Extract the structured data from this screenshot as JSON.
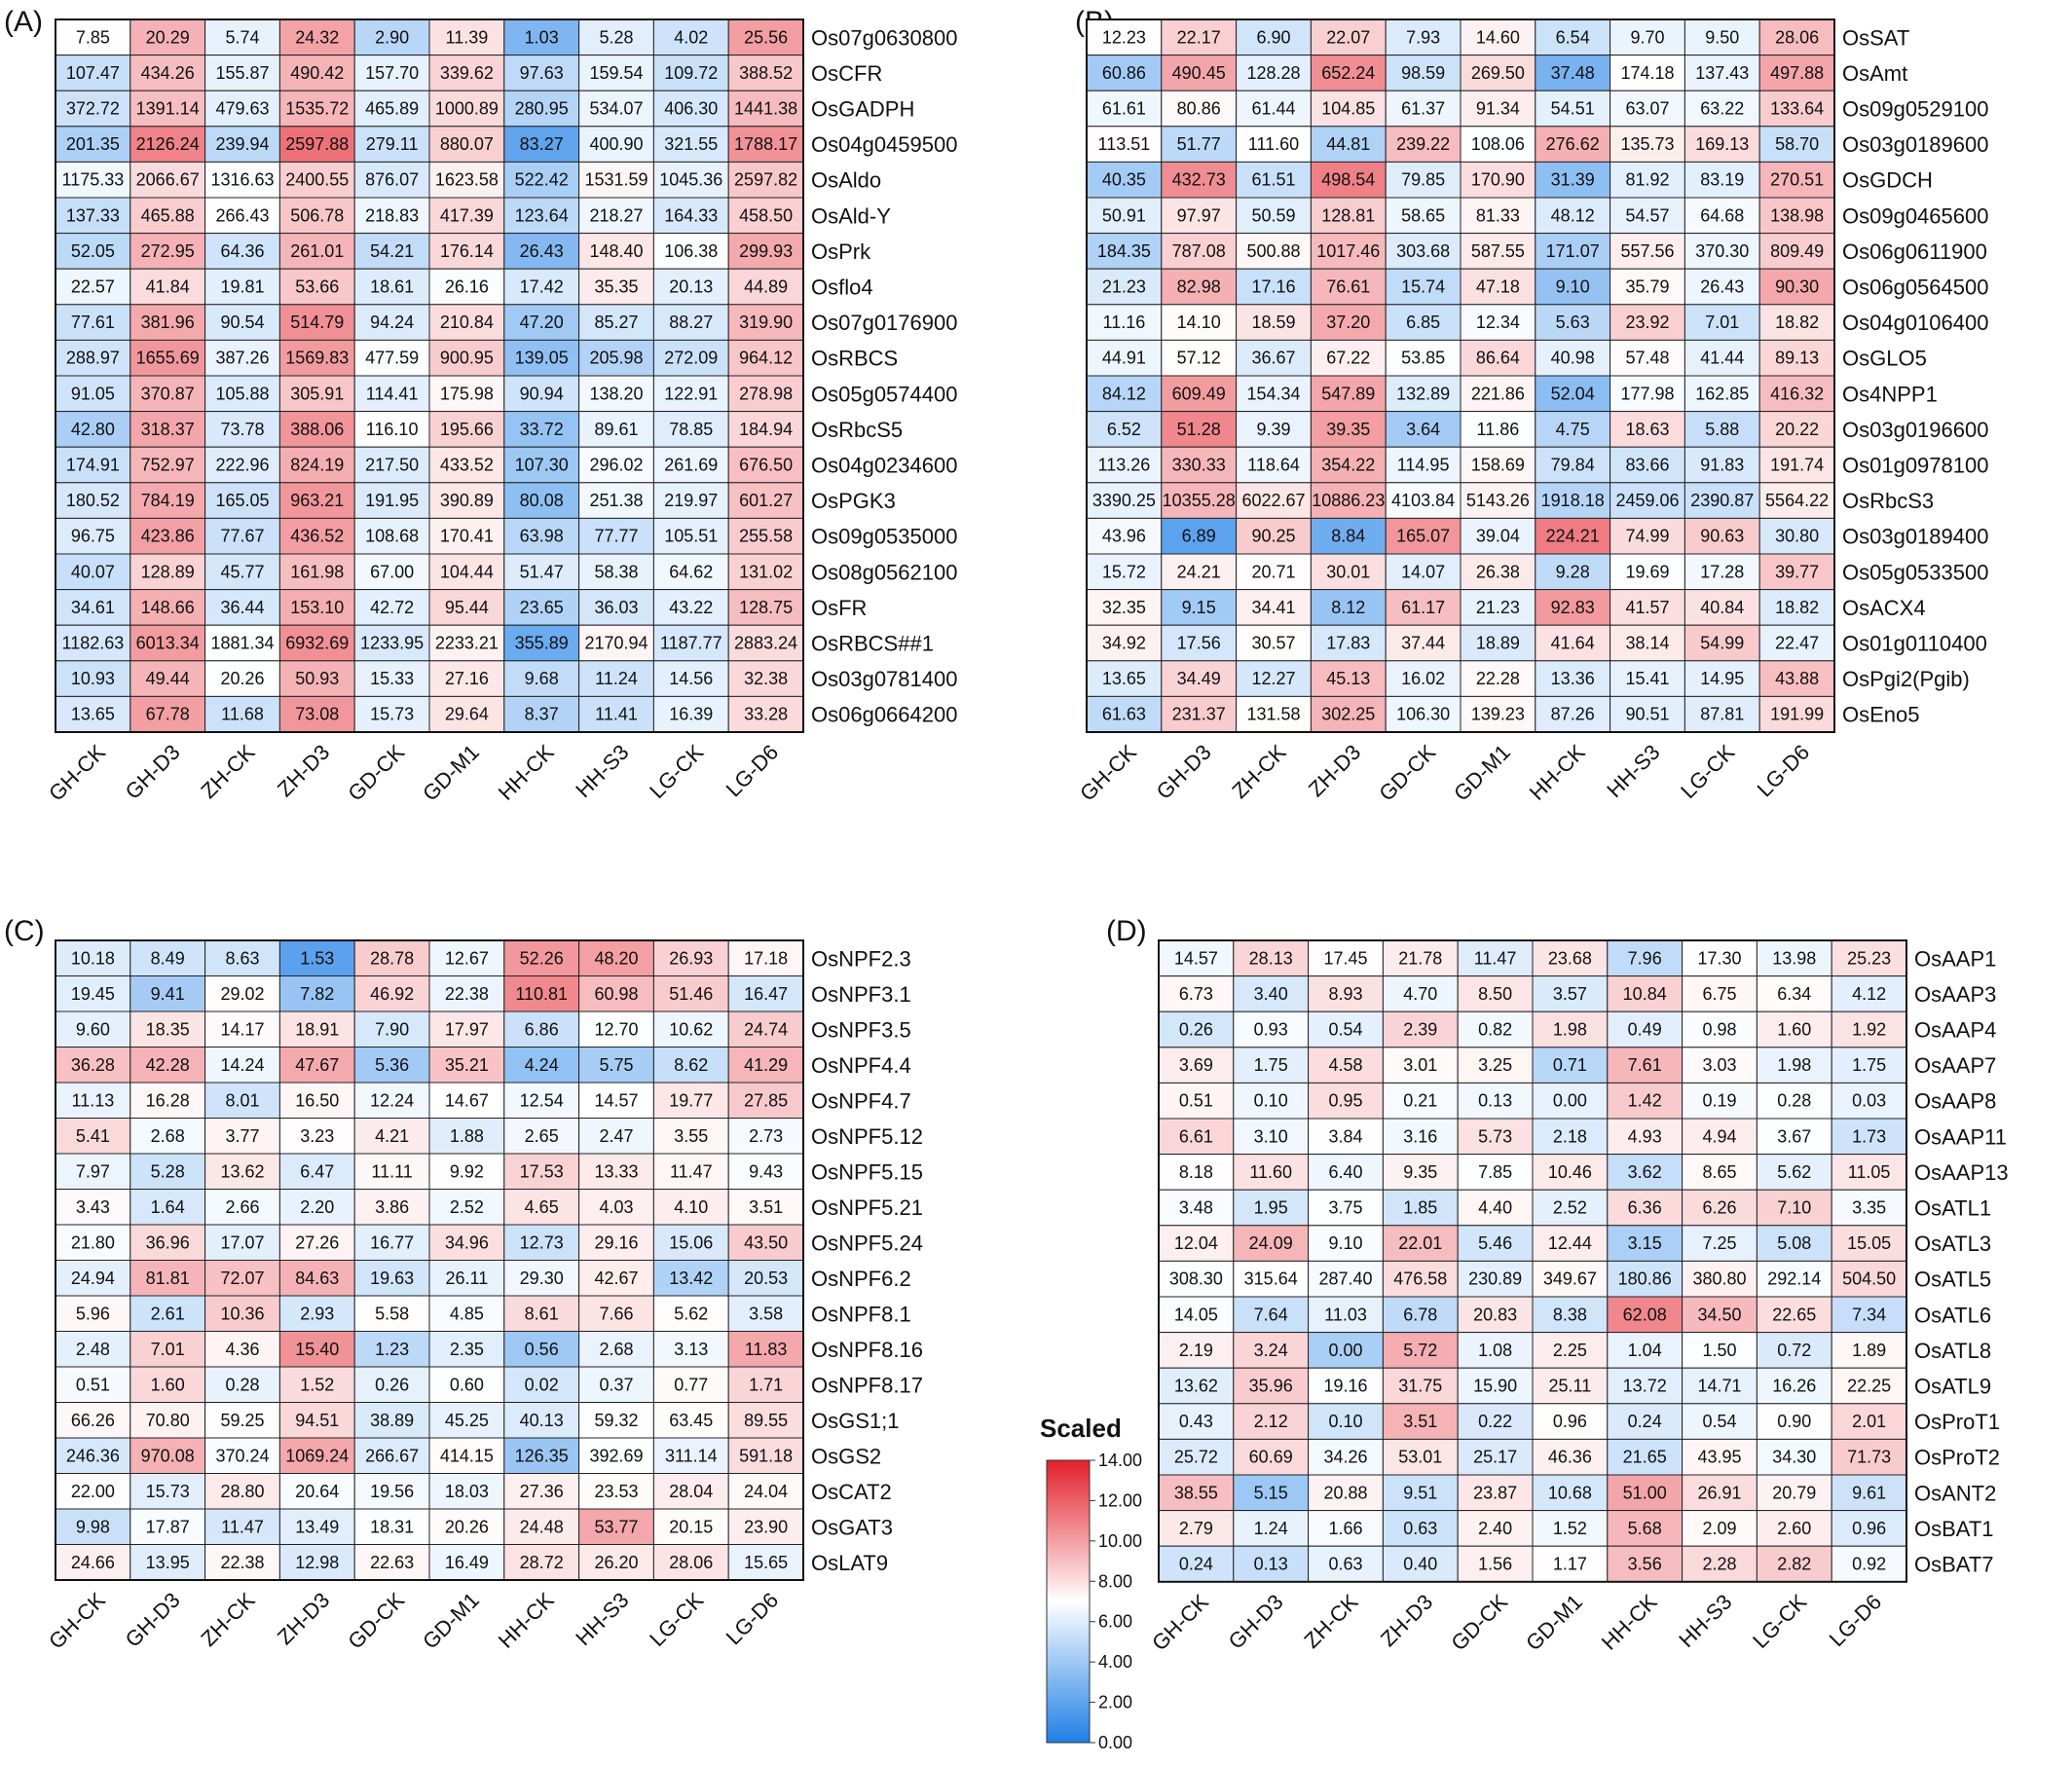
{
  "legend": {
    "title": "Scaled",
    "ticks": [
      "14.00",
      "12.00",
      "10.00",
      "8.00",
      "6.00",
      "4.00",
      "2.00",
      "0.00"
    ],
    "colors": [
      "#1f7fe6",
      "#ffffff",
      "#e2202a"
    ]
  },
  "chart_data": [
    {
      "type": "heatmap",
      "panel_label": "(A)",
      "columns": [
        "GH-CK",
        "GH-D3",
        "ZH-CK",
        "ZH-D3",
        "GD-CK",
        "GD-M1",
        "HH-CK",
        "HH-S3",
        "LG-CK",
        "LG-D6"
      ],
      "rows": [
        "Os07g0630800",
        "OsCFR",
        "OsGADPH",
        "Os04g0459500",
        "OsAldo",
        "OsAld-Y",
        "OsPrk",
        "Osflo4",
        "Os07g0176900",
        "OsRBCS",
        "Os05g0574400",
        "OsRbcS5",
        "Os04g0234600",
        "OsPGK3",
        "Os09g0535000",
        "Os08g0562100",
        "OsFR",
        "OsRBCS##1",
        "Os03g0781400",
        "Os06g0664200"
      ],
      "values": [
        [
          "7.85",
          "20.29",
          "5.74",
          "24.32",
          "2.90",
          "11.39",
          "1.03",
          "5.28",
          "4.02",
          "25.56"
        ],
        [
          "107.47",
          "434.26",
          "155.87",
          "490.42",
          "157.70",
          "339.62",
          "97.63",
          "159.54",
          "109.72",
          "388.52"
        ],
        [
          "372.72",
          "1391.14",
          "479.63",
          "1535.72",
          "465.89",
          "1000.89",
          "280.95",
          "534.07",
          "406.30",
          "1441.38"
        ],
        [
          "201.35",
          "2126.24",
          "239.94",
          "2597.88",
          "279.11",
          "880.07",
          "83.27",
          "400.90",
          "321.55",
          "1788.17"
        ],
        [
          "1175.33",
          "2066.67",
          "1316.63",
          "2400.55",
          "876.07",
          "1623.58",
          "522.42",
          "1531.59",
          "1045.36",
          "2597.82"
        ],
        [
          "137.33",
          "465.88",
          "266.43",
          "506.78",
          "218.83",
          "417.39",
          "123.64",
          "218.27",
          "164.33",
          "458.50"
        ],
        [
          "52.05",
          "272.95",
          "64.36",
          "261.01",
          "54.21",
          "176.14",
          "26.43",
          "148.40",
          "106.38",
          "299.93"
        ],
        [
          "22.57",
          "41.84",
          "19.81",
          "53.66",
          "18.61",
          "26.16",
          "17.42",
          "35.35",
          "20.13",
          "44.89"
        ],
        [
          "77.61",
          "381.96",
          "90.54",
          "514.79",
          "94.24",
          "210.84",
          "47.20",
          "85.27",
          "88.27",
          "319.90"
        ],
        [
          "288.97",
          "1655.69",
          "387.26",
          "1569.83",
          "477.59",
          "900.95",
          "139.05",
          "205.98",
          "272.09",
          "964.12"
        ],
        [
          "91.05",
          "370.87",
          "105.88",
          "305.91",
          "114.41",
          "175.98",
          "90.94",
          "138.20",
          "122.91",
          "278.98"
        ],
        [
          "42.80",
          "318.37",
          "73.78",
          "388.06",
          "116.10",
          "195.66",
          "33.72",
          "89.61",
          "78.85",
          "184.94"
        ],
        [
          "174.91",
          "752.97",
          "222.96",
          "824.19",
          "217.50",
          "433.52",
          "107.30",
          "296.02",
          "261.69",
          "676.50"
        ],
        [
          "180.52",
          "784.19",
          "165.05",
          "963.21",
          "191.95",
          "390.89",
          "80.08",
          "251.38",
          "219.97",
          "601.27"
        ],
        [
          "96.75",
          "423.86",
          "77.67",
          "436.52",
          "108.68",
          "170.41",
          "63.98",
          "77.77",
          "105.51",
          "255.58"
        ],
        [
          "40.07",
          "128.89",
          "45.77",
          "161.98",
          "67.00",
          "104.44",
          "51.47",
          "58.38",
          "64.62",
          "131.02"
        ],
        [
          "34.61",
          "148.66",
          "36.44",
          "153.10",
          "42.72",
          "95.44",
          "23.65",
          "36.03",
          "43.22",
          "128.75"
        ],
        [
          "1182.63",
          "6013.34",
          "1881.34",
          "6932.69",
          "1233.95",
          "2233.21",
          "355.89",
          "2170.94",
          "1187.77",
          "2883.24"
        ],
        [
          "10.93",
          "49.44",
          "20.26",
          "50.93",
          "15.33",
          "27.16",
          "9.68",
          "11.24",
          "14.56",
          "32.38"
        ],
        [
          "13.65",
          "67.78",
          "11.68",
          "73.08",
          "15.73",
          "29.64",
          "8.37",
          "11.41",
          "16.39",
          "33.28"
        ]
      ]
    },
    {
      "type": "heatmap",
      "panel_label": "(B)",
      "columns": [
        "GH-CK",
        "GH-D3",
        "ZH-CK",
        "ZH-D3",
        "GD-CK",
        "GD-M1",
        "HH-CK",
        "HH-S3",
        "LG-CK",
        "LG-D6"
      ],
      "rows": [
        "OsSAT",
        "OsAmt",
        "Os09g0529100",
        "Os03g0189600",
        "OsGDCH",
        "Os09g0465600",
        "Os06g0611900",
        "Os06g0564500",
        "Os04g0106400",
        "OsGLO5",
        "Os4NPP1",
        "Os03g0196600",
        "Os01g0978100",
        "OsRbcS3",
        "Os03g0189400",
        "Os05g0533500",
        "OsACX4",
        "Os01g0110400",
        "OsPgi2(Pgib)",
        "OsEno5"
      ],
      "values": [
        [
          "12.23",
          "22.17",
          "6.90",
          "22.07",
          "7.93",
          "14.60",
          "6.54",
          "9.70",
          "9.50",
          "28.06"
        ],
        [
          "60.86",
          "490.45",
          "128.28",
          "652.24",
          "98.59",
          "269.50",
          "37.48",
          "174.18",
          "137.43",
          "497.88"
        ],
        [
          "61.61",
          "80.86",
          "61.44",
          "104.85",
          "61.37",
          "91.34",
          "54.51",
          "63.07",
          "63.22",
          "133.64"
        ],
        [
          "113.51",
          "51.77",
          "111.60",
          "44.81",
          "239.22",
          "108.06",
          "276.62",
          "135.73",
          "169.13",
          "58.70"
        ],
        [
          "40.35",
          "432.73",
          "61.51",
          "498.54",
          "79.85",
          "170.90",
          "31.39",
          "81.92",
          "83.19",
          "270.51"
        ],
        [
          "50.91",
          "97.97",
          "50.59",
          "128.81",
          "58.65",
          "81.33",
          "48.12",
          "54.57",
          "64.68",
          "138.98"
        ],
        [
          "184.35",
          "787.08",
          "500.88",
          "1017.46",
          "303.68",
          "587.55",
          "171.07",
          "557.56",
          "370.30",
          "809.49"
        ],
        [
          "21.23",
          "82.98",
          "17.16",
          "76.61",
          "15.74",
          "47.18",
          "9.10",
          "35.79",
          "26.43",
          "90.30"
        ],
        [
          "11.16",
          "14.10",
          "18.59",
          "37.20",
          "6.85",
          "12.34",
          "5.63",
          "23.92",
          "7.01",
          "18.82"
        ],
        [
          "44.91",
          "57.12",
          "36.67",
          "67.22",
          "53.85",
          "86.64",
          "40.98",
          "57.48",
          "41.44",
          "89.13"
        ],
        [
          "84.12",
          "609.49",
          "154.34",
          "547.89",
          "132.89",
          "221.86",
          "52.04",
          "177.98",
          "162.85",
          "416.32"
        ],
        [
          "6.52",
          "51.28",
          "9.39",
          "39.35",
          "3.64",
          "11.86",
          "4.75",
          "18.63",
          "5.88",
          "20.22"
        ],
        [
          "113.26",
          "330.33",
          "118.64",
          "354.22",
          "114.95",
          "158.69",
          "79.84",
          "83.66",
          "91.83",
          "191.74"
        ],
        [
          "3390.25",
          "10355.28",
          "6022.67",
          "10886.23",
          "4103.84",
          "5143.26",
          "1918.18",
          "2459.06",
          "2390.87",
          "5564.22"
        ],
        [
          "43.96",
          "6.89",
          "90.25",
          "8.84",
          "165.07",
          "39.04",
          "224.21",
          "74.99",
          "90.63",
          "30.80"
        ],
        [
          "15.72",
          "24.21",
          "20.71",
          "30.01",
          "14.07",
          "26.38",
          "9.28",
          "19.69",
          "17.28",
          "39.77"
        ],
        [
          "32.35",
          "9.15",
          "34.41",
          "8.12",
          "61.17",
          "21.23",
          "92.83",
          "41.57",
          "40.84",
          "18.82"
        ],
        [
          "34.92",
          "17.56",
          "30.57",
          "17.83",
          "37.44",
          "18.89",
          "41.64",
          "38.14",
          "54.99",
          "22.47"
        ],
        [
          "13.65",
          "34.49",
          "12.27",
          "45.13",
          "16.02",
          "22.28",
          "13.36",
          "15.41",
          "14.95",
          "43.88"
        ],
        [
          "61.63",
          "231.37",
          "131.58",
          "302.25",
          "106.30",
          "139.23",
          "87.26",
          "90.51",
          "87.81",
          "191.99"
        ]
      ]
    },
    {
      "type": "heatmap",
      "panel_label": "(C)",
      "columns": [
        "GH-CK",
        "GH-D3",
        "ZH-CK",
        "ZH-D3",
        "GD-CK",
        "GD-M1",
        "HH-CK",
        "HH-S3",
        "LG-CK",
        "LG-D6"
      ],
      "rows": [
        "OsNPF2.3",
        "OsNPF3.1",
        "OsNPF3.5",
        "OsNPF4.4",
        "OsNPF4.7",
        "OsNPF5.12",
        "OsNPF5.15",
        "OsNPF5.21",
        "OsNPF5.24",
        "OsNPF6.2",
        "OsNPF8.1",
        "OsNPF8.16",
        "OsNPF8.17",
        "OsGS1;1",
        "OsGS2",
        "OsCAT2",
        "OsGAT3",
        "OsLAT9"
      ],
      "values": [
        [
          "10.18",
          "8.49",
          "8.63",
          "1.53",
          "28.78",
          "12.67",
          "52.26",
          "48.20",
          "26.93",
          "17.18"
        ],
        [
          "19.45",
          "9.41",
          "29.02",
          "7.82",
          "46.92",
          "22.38",
          "110.81",
          "60.98",
          "51.46",
          "16.47"
        ],
        [
          "9.60",
          "18.35",
          "14.17",
          "18.91",
          "7.90",
          "17.97",
          "6.86",
          "12.70",
          "10.62",
          "24.74"
        ],
        [
          "36.28",
          "42.28",
          "14.24",
          "47.67",
          "5.36",
          "35.21",
          "4.24",
          "5.75",
          "8.62",
          "41.29"
        ],
        [
          "11.13",
          "16.28",
          "8.01",
          "16.50",
          "12.24",
          "14.67",
          "12.54",
          "14.57",
          "19.77",
          "27.85"
        ],
        [
          "5.41",
          "2.68",
          "3.77",
          "3.23",
          "4.21",
          "1.88",
          "2.65",
          "2.47",
          "3.55",
          "2.73"
        ],
        [
          "7.97",
          "5.28",
          "13.62",
          "6.47",
          "11.11",
          "9.92",
          "17.53",
          "13.33",
          "11.47",
          "9.43"
        ],
        [
          "3.43",
          "1.64",
          "2.66",
          "2.20",
          "3.86",
          "2.52",
          "4.65",
          "4.03",
          "4.10",
          "3.51"
        ],
        [
          "21.80",
          "36.96",
          "17.07",
          "27.26",
          "16.77",
          "34.96",
          "12.73",
          "29.16",
          "15.06",
          "43.50"
        ],
        [
          "24.94",
          "81.81",
          "72.07",
          "84.63",
          "19.63",
          "26.11",
          "29.30",
          "42.67",
          "13.42",
          "20.53"
        ],
        [
          "5.96",
          "2.61",
          "10.36",
          "2.93",
          "5.58",
          "4.85",
          "8.61",
          "7.66",
          "5.62",
          "3.58"
        ],
        [
          "2.48",
          "7.01",
          "4.36",
          "15.40",
          "1.23",
          "2.35",
          "0.56",
          "2.68",
          "3.13",
          "11.83"
        ],
        [
          "0.51",
          "1.60",
          "0.28",
          "1.52",
          "0.26",
          "0.60",
          "0.02",
          "0.37",
          "0.77",
          "1.71"
        ],
        [
          "66.26",
          "70.80",
          "59.25",
          "94.51",
          "38.89",
          "45.25",
          "40.13",
          "59.32",
          "63.45",
          "89.55"
        ],
        [
          "246.36",
          "970.08",
          "370.24",
          "1069.24",
          "266.67",
          "414.15",
          "126.35",
          "392.69",
          "311.14",
          "591.18"
        ],
        [
          "22.00",
          "15.73",
          "28.80",
          "20.64",
          "19.56",
          "18.03",
          "27.36",
          "23.53",
          "28.04",
          "24.04"
        ],
        [
          "9.98",
          "17.87",
          "11.47",
          "13.49",
          "18.31",
          "20.26",
          "24.48",
          "53.77",
          "20.15",
          "23.90"
        ],
        [
          "24.66",
          "13.95",
          "22.38",
          "12.98",
          "22.63",
          "16.49",
          "28.72",
          "26.20",
          "28.06",
          "15.65"
        ]
      ]
    },
    {
      "type": "heatmap",
      "panel_label": "(D)",
      "columns": [
        "GH-CK",
        "GH-D3",
        "ZH-CK",
        "ZH-D3",
        "GD-CK",
        "GD-M1",
        "HH-CK",
        "HH-S3",
        "LG-CK",
        "LG-D6"
      ],
      "rows": [
        "OsAAP1",
        "OsAAP3",
        "OsAAP4",
        "OsAAP7",
        "OsAAP8",
        "OsAAP11",
        "OsAAP13",
        "OsATL1",
        "OsATL3",
        "OsATL5",
        "OsATL6",
        "OsATL8",
        "OsATL9",
        "OsProT1",
        "OsProT2",
        "OsANT2",
        "OsBAT1",
        "OsBAT7"
      ],
      "values": [
        [
          "14.57",
          "28.13",
          "17.45",
          "21.78",
          "11.47",
          "23.68",
          "7.96",
          "17.30",
          "13.98",
          "25.23"
        ],
        [
          "6.73",
          "3.40",
          "8.93",
          "4.70",
          "8.50",
          "3.57",
          "10.84",
          "6.75",
          "6.34",
          "4.12"
        ],
        [
          "0.26",
          "0.93",
          "0.54",
          "2.39",
          "0.82",
          "1.98",
          "0.49",
          "0.98",
          "1.60",
          "1.92"
        ],
        [
          "3.69",
          "1.75",
          "4.58",
          "3.01",
          "3.25",
          "0.71",
          "7.61",
          "3.03",
          "1.98",
          "1.75"
        ],
        [
          "0.51",
          "0.10",
          "0.95",
          "0.21",
          "0.13",
          "0.00",
          "1.42",
          "0.19",
          "0.28",
          "0.03"
        ],
        [
          "6.61",
          "3.10",
          "3.84",
          "3.16",
          "5.73",
          "2.18",
          "4.93",
          "4.94",
          "3.67",
          "1.73"
        ],
        [
          "8.18",
          "11.60",
          "6.40",
          "9.35",
          "7.85",
          "10.46",
          "3.62",
          "8.65",
          "5.62",
          "11.05"
        ],
        [
          "3.48",
          "1.95",
          "3.75",
          "1.85",
          "4.40",
          "2.52",
          "6.36",
          "6.26",
          "7.10",
          "3.35"
        ],
        [
          "12.04",
          "24.09",
          "9.10",
          "22.01",
          "5.46",
          "12.44",
          "3.15",
          "7.25",
          "5.08",
          "15.05"
        ],
        [
          "308.30",
          "315.64",
          "287.40",
          "476.58",
          "230.89",
          "349.67",
          "180.86",
          "380.80",
          "292.14",
          "504.50"
        ],
        [
          "14.05",
          "7.64",
          "11.03",
          "6.78",
          "20.83",
          "8.38",
          "62.08",
          "34.50",
          "22.65",
          "7.34"
        ],
        [
          "2.19",
          "3.24",
          "0.00",
          "5.72",
          "1.08",
          "2.25",
          "1.04",
          "1.50",
          "0.72",
          "1.89"
        ],
        [
          "13.62",
          "35.96",
          "19.16",
          "31.75",
          "15.90",
          "25.11",
          "13.72",
          "14.71",
          "16.26",
          "22.25"
        ],
        [
          "0.43",
          "2.12",
          "0.10",
          "3.51",
          "0.22",
          "0.96",
          "0.24",
          "0.54",
          "0.90",
          "2.01"
        ],
        [
          "25.72",
          "60.69",
          "34.26",
          "53.01",
          "25.17",
          "46.36",
          "21.65",
          "43.95",
          "34.30",
          "71.73"
        ],
        [
          "38.55",
          "5.15",
          "20.88",
          "9.51",
          "23.87",
          "10.68",
          "51.00",
          "26.91",
          "20.79",
          "9.61"
        ],
        [
          "2.79",
          "1.24",
          "1.66",
          "0.63",
          "2.40",
          "1.52",
          "5.68",
          "2.09",
          "2.60",
          "0.96"
        ],
        [
          "0.24",
          "0.13",
          "0.63",
          "0.40",
          "1.56",
          "1.17",
          "3.56",
          "2.28",
          "2.82",
          "0.92"
        ]
      ]
    }
  ]
}
